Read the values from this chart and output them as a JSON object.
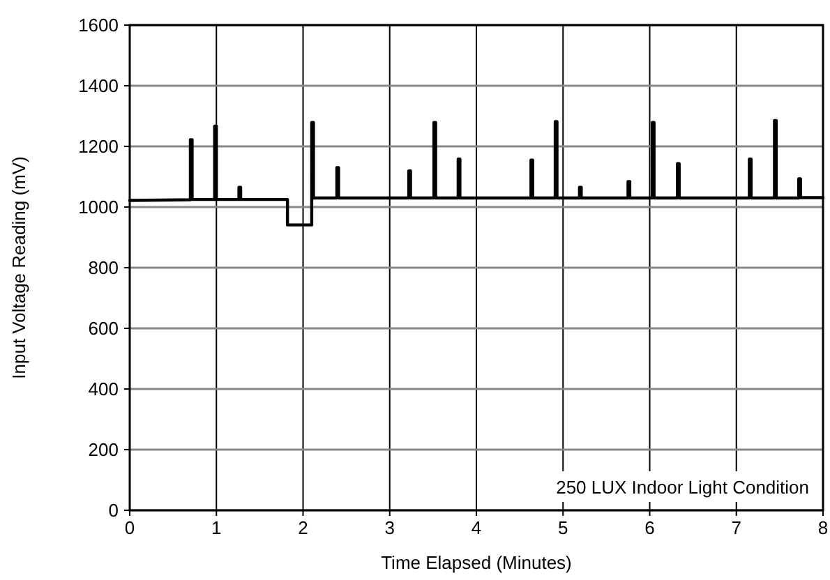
{
  "chart_data": {
    "type": "line",
    "xlabel": "Time Elapsed (Minutes)",
    "ylabel": "Input Voltage Reading (mV)",
    "annotations": [
      "250 LUX Indoor Light Condition"
    ],
    "xlim": [
      0,
      8
    ],
    "xticks": [
      0,
      1,
      2,
      3,
      4,
      5,
      6,
      7,
      8
    ],
    "ylim": [
      0,
      1600
    ],
    "yticks": [
      0,
      200,
      400,
      600,
      800,
      1000,
      1200,
      1400,
      1600
    ],
    "grid": true,
    "marker": "none",
    "line_style": "solid",
    "series": [
      {
        "color": "#000000",
        "x": [
          0,
          0.7,
          0.7,
          0.72,
          0.72,
          0.98,
          0.98,
          1.0,
          1.0,
          1.26,
          1.26,
          1.28,
          1.28,
          1.82,
          1.82,
          2.1,
          2.1,
          2.12,
          2.12,
          2.39,
          2.39,
          2.41,
          2.41,
          3.22,
          3.22,
          3.24,
          3.24,
          3.51,
          3.51,
          3.53,
          3.53,
          3.79,
          3.79,
          3.81,
          3.81,
          4.63,
          4.63,
          4.65,
          4.65,
          4.91,
          4.91,
          4.93,
          4.93,
          5.19,
          5.19,
          5.21,
          5.21,
          5.75,
          5.75,
          5.77,
          5.77,
          6.03,
          6.03,
          6.05,
          6.05,
          6.32,
          6.32,
          6.34,
          6.34,
          7.15,
          7.15,
          7.17,
          7.17,
          7.44,
          7.44,
          7.46,
          7.46,
          7.72,
          7.72,
          7.74,
          7.74,
          8
        ],
        "values": [
          1022,
          1024,
          1222,
          1222,
          1025,
          1025,
          1267,
          1267,
          1025,
          1025,
          1065,
          1065,
          1025,
          1025,
          941,
          941,
          1279,
          1279,
          1030,
          1030,
          1130,
          1130,
          1030,
          1030,
          1119,
          1119,
          1030,
          1030,
          1279,
          1279,
          1030,
          1030,
          1158,
          1158,
          1030,
          1030,
          1155,
          1155,
          1030,
          1030,
          1282,
          1282,
          1030,
          1030,
          1065,
          1065,
          1030,
          1030,
          1084,
          1084,
          1030,
          1030,
          1279,
          1279,
          1030,
          1030,
          1143,
          1143,
          1030,
          1030,
          1158,
          1158,
          1030,
          1030,
          1285,
          1285,
          1030,
          1030,
          1093,
          1093,
          1031,
          1031
        ]
      }
    ]
  }
}
